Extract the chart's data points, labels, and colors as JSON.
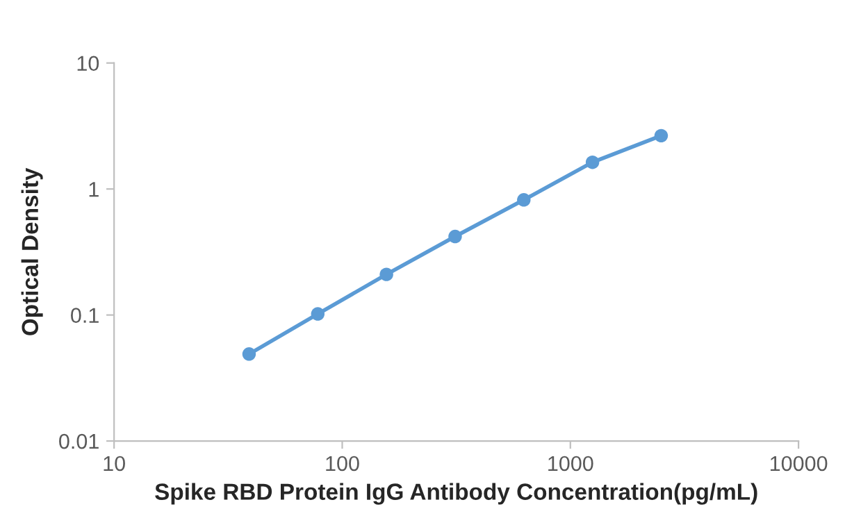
{
  "chart_data": {
    "type": "line",
    "xlabel": "Spike RBD Protein IgG Antibody Concentration(pg/mL)",
    "ylabel": "Optical Density",
    "x": [
      39.06,
      78.13,
      156.25,
      312.5,
      625,
      1250,
      2500
    ],
    "series": [
      {
        "color": "#5b9bd5",
        "values": [
          0.049,
          0.102,
          0.21,
          0.42,
          0.82,
          1.63,
          2.65
        ]
      }
    ],
    "log": "xy",
    "xlim": [
      10,
      10000
    ],
    "ylim": [
      0.01,
      10
    ],
    "xticks": [
      10,
      100,
      1000,
      10000
    ],
    "yticks": [
      0.01,
      0.1,
      1,
      10
    ],
    "grid": false,
    "marker": "circle",
    "line_style": "solid"
  }
}
